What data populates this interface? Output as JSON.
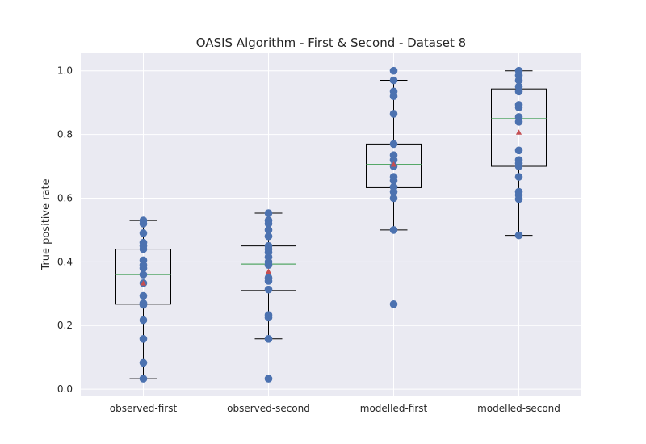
{
  "chart_data": {
    "type": "box",
    "title": "OASIS Algorithm - First & Second - Dataset 8",
    "xlabel": "",
    "ylabel": "True positive rate",
    "ylim": [
      -0.02,
      1.055
    ],
    "yticks": [
      "0.0",
      "0.2",
      "0.4",
      "0.6",
      "0.8",
      "1.0"
    ],
    "grid": true,
    "categories": [
      "observed-first",
      "observed-second",
      "modelled-first",
      "modelled-second"
    ],
    "boxes": [
      {
        "whisker_low": 0.033,
        "q1": 0.267,
        "median": 0.36,
        "q3": 0.44,
        "whisker_high": 0.53,
        "mean": 0.333
      },
      {
        "whisker_low": 0.158,
        "q1": 0.31,
        "median": 0.393,
        "q3": 0.45,
        "whisker_high": 0.553,
        "mean": 0.37
      },
      {
        "whisker_low": 0.5,
        "q1": 0.633,
        "median": 0.706,
        "q3": 0.77,
        "whisker_high": 0.97,
        "mean": 0.706
      },
      {
        "whisker_low": 0.483,
        "q1": 0.7,
        "median": 0.85,
        "q3": 0.943,
        "whisker_high": 1.0,
        "mean": 0.807
      }
    ],
    "points": [
      [
        0.53,
        0.52,
        0.49,
        0.46,
        0.45,
        0.44,
        0.405,
        0.39,
        0.38,
        0.36,
        0.333,
        0.293,
        0.27,
        0.265,
        0.217,
        0.158,
        0.083,
        0.033
      ],
      [
        0.553,
        0.53,
        0.52,
        0.5,
        0.48,
        0.45,
        0.44,
        0.43,
        0.415,
        0.4,
        0.39,
        0.35,
        0.34,
        0.313,
        0.233,
        0.225,
        0.158,
        0.033
      ],
      [
        1.0,
        0.97,
        0.935,
        0.92,
        0.865,
        0.77,
        0.735,
        0.72,
        0.7,
        0.667,
        0.655,
        0.635,
        0.62,
        0.6,
        0.5,
        0.267
      ],
      [
        1.0,
        0.985,
        0.97,
        0.95,
        0.935,
        0.893,
        0.885,
        0.855,
        0.84,
        0.75,
        0.72,
        0.71,
        0.7,
        0.667,
        0.62,
        0.61,
        0.597,
        0.483
      ]
    ],
    "colors": {
      "background": "#eaeaf2",
      "grid": "#ffffff",
      "point": "#4c72b0",
      "median": "#55a868",
      "mean": "#c44e52",
      "box": "#000000"
    }
  }
}
